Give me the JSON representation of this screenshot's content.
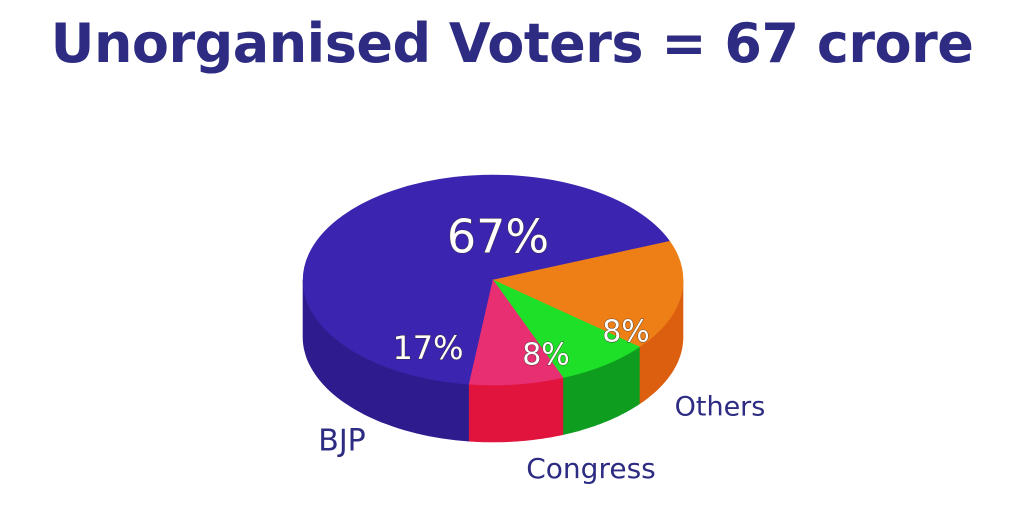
{
  "chart_data": {
    "type": "pie",
    "title": "Unorganised Voters = 67 crore",
    "categories": [
      "",
      "BJP",
      "Congress",
      "Others"
    ],
    "values": [
      67,
      17,
      8,
      8
    ],
    "data_labels": [
      "67%",
      "17%",
      "8%",
      "8%"
    ],
    "colors": [
      "#3b25b0",
      "#ee7f16",
      "#1fe028",
      "#e72f72"
    ],
    "side_colors": [
      "#2e1c8e",
      "#dc5f10",
      "#0f9d20",
      "#e0143c"
    ]
  }
}
